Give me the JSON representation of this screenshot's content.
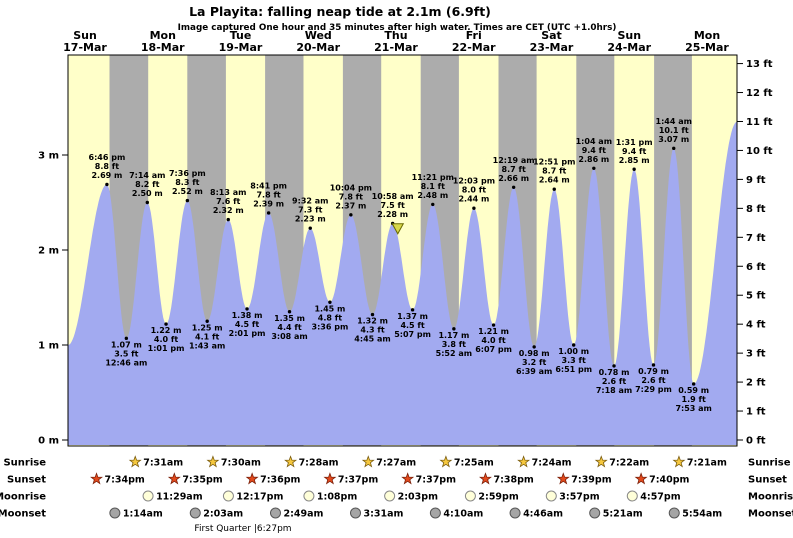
{
  "colors": {
    "day_bg": "#ffffc9",
    "night_bg": "#acacac",
    "tide_fill": "#a2aaf0",
    "day_label": "#e00000",
    "marker_fill": "#d8d84a",
    "marker_stroke": "#6a6a00",
    "sunrise_star": "#f6c83e",
    "sunrise_star_stroke": "#7a5c10",
    "sunset_star": "#e2491c",
    "sunset_star_stroke": "#7a200a",
    "moonrise_fill": "#ffffd9",
    "moonrise_stroke": "#888888",
    "moonset_fill": "#a5a5a5",
    "moonset_stroke": "#555555"
  },
  "chart_data": {
    "type": "area",
    "title": "La Playita: falling  neap tide at 2.1m (6.9ft)",
    "subtitle": "Image captured One hour and 35 minutes after high water. Times are CET (UTC +1.0hrs)",
    "ylim_m": [
      0,
      4.05
    ],
    "ylim_ft": [
      0,
      13.3
    ],
    "y_axis_left": {
      "unit": "m",
      "ticks": [
        "0 m",
        "1 m",
        "2 m",
        "3 m"
      ]
    },
    "y_axis_right": {
      "unit": "ft",
      "ticks": [
        "0 ft",
        "1 ft",
        "2 ft",
        "3 ft",
        "4 ft",
        "5 ft",
        "6 ft",
        "7 ft",
        "8 ft",
        "9 ft",
        "10 ft",
        "11 ft",
        "12 ft",
        "13 ft"
      ]
    },
    "days": [
      {
        "name": "Sun",
        "date": "17-Mar"
      },
      {
        "name": "Mon",
        "date": "18-Mar"
      },
      {
        "name": "Tue",
        "date": "19-Mar"
      },
      {
        "name": "Wed",
        "date": "20-Mar"
      },
      {
        "name": "Thu",
        "date": "21-Mar"
      },
      {
        "name": "Fri",
        "date": "22-Mar"
      },
      {
        "name": "Sat",
        "date": "23-Mar"
      },
      {
        "name": "Sun",
        "date": "24-Mar"
      },
      {
        "name": "Mon",
        "date": "25-Mar"
      }
    ],
    "tide_events": [
      {
        "day": 0,
        "time": "6:46 pm",
        "type": "high",
        "ft": "8.8 ft",
        "m": "2.69 m",
        "height_m": 2.69
      },
      {
        "day": 1,
        "time": "12:46 am",
        "type": "low",
        "ft": "3.5 ft",
        "m": "1.07 m",
        "height_m": 1.07
      },
      {
        "day": 1,
        "time": "7:14 am",
        "type": "high",
        "ft": "8.2 ft",
        "m": "2.50 m",
        "height_m": 2.5
      },
      {
        "day": 1,
        "time": "1:01 pm",
        "type": "low",
        "ft": "4.0 ft",
        "m": "1.22 m",
        "height_m": 1.22
      },
      {
        "day": 1,
        "time": "7:36 pm",
        "type": "high",
        "ft": "8.3 ft",
        "m": "2.52 m",
        "height_m": 2.52
      },
      {
        "day": 2,
        "time": "1:43 am",
        "type": "low",
        "ft": "4.1 ft",
        "m": "1.25 m",
        "height_m": 1.25
      },
      {
        "day": 2,
        "time": "8:13 am",
        "type": "high",
        "ft": "7.6 ft",
        "m": "2.32 m",
        "height_m": 2.32
      },
      {
        "day": 2,
        "time": "2:01 pm",
        "type": "low",
        "ft": "4.5 ft",
        "m": "1.38 m",
        "height_m": 1.38
      },
      {
        "day": 2,
        "time": "8:41 pm",
        "type": "high",
        "ft": "7.8 ft",
        "m": "2.39 m",
        "height_m": 2.39
      },
      {
        "day": 3,
        "time": "3:08 am",
        "type": "low",
        "ft": "4.4 ft",
        "m": "1.35 m",
        "height_m": 1.35
      },
      {
        "day": 3,
        "time": "9:32 am",
        "type": "high",
        "ft": "7.3 ft",
        "m": "2.23 m",
        "height_m": 2.23
      },
      {
        "day": 3,
        "time": "3:36 pm",
        "type": "low",
        "ft": "4.8 ft",
        "m": "1.45 m",
        "height_m": 1.45
      },
      {
        "day": 3,
        "time": "10:04 pm",
        "type": "high",
        "ft": "7.8 ft",
        "m": "2.37 m",
        "height_m": 2.37
      },
      {
        "day": 4,
        "time": "4:45 am",
        "type": "low",
        "ft": "4.3 ft",
        "m": "1.32 m",
        "height_m": 1.32
      },
      {
        "day": 4,
        "time": "10:58 am",
        "type": "high",
        "ft": "7.5 ft",
        "m": "2.28 m",
        "height_m": 2.28
      },
      {
        "day": 4,
        "time": "5:07 pm",
        "type": "low",
        "ft": "4.5 ft",
        "m": "1.37 m",
        "height_m": 1.37
      },
      {
        "day": 4,
        "time": "11:21 pm",
        "type": "high",
        "ft": "8.1 ft",
        "m": "2.48 m",
        "height_m": 2.48
      },
      {
        "day": 5,
        "time": "5:52 am",
        "type": "low",
        "ft": "3.8 ft",
        "m": "1.17 m",
        "height_m": 1.17
      },
      {
        "day": 5,
        "time": "12:03 pm",
        "type": "high",
        "ft": "8.0 ft",
        "m": "2.44 m",
        "height_m": 2.44
      },
      {
        "day": 5,
        "time": "6:07 pm",
        "type": "low",
        "ft": "4.0 ft",
        "m": "1.21 m",
        "height_m": 1.21
      },
      {
        "day": 6,
        "time": "12:19 am",
        "type": "high",
        "ft": "8.7 ft",
        "m": "2.66 m",
        "height_m": 2.66
      },
      {
        "day": 6,
        "time": "6:39 am",
        "type": "low",
        "ft": "3.2 ft",
        "m": "0.98 m",
        "height_m": 0.98
      },
      {
        "day": 6,
        "time": "12:51 pm",
        "type": "high",
        "ft": "8.7 ft",
        "m": "2.64 m",
        "height_m": 2.64
      },
      {
        "day": 6,
        "time": "6:51 pm",
        "type": "low",
        "ft": "3.3 ft",
        "m": "1.00 m",
        "height_m": 1.0
      },
      {
        "day": 7,
        "time": "1:04 am",
        "type": "high",
        "ft": "9.4 ft",
        "m": "2.86 m",
        "height_m": 2.86
      },
      {
        "day": 7,
        "time": "7:18 am",
        "type": "low",
        "ft": "2.6 ft",
        "m": "0.78 m",
        "height_m": 0.78
      },
      {
        "day": 7,
        "time": "1:31 pm",
        "type": "high",
        "ft": "9.4 ft",
        "m": "2.85 m",
        "height_m": 2.85
      },
      {
        "day": 7,
        "time": "7:29 pm",
        "type": "low",
        "ft": "2.6 ft",
        "m": "0.79 m",
        "height_m": 0.79
      },
      {
        "day": 8,
        "time": "1:44 am",
        "type": "high",
        "ft": "10.1 ft",
        "m": "3.07 m",
        "height_m": 3.07
      },
      {
        "day": 8,
        "time": "7:53 am",
        "type": "low",
        "ft": "1.9 ft",
        "m": "0.59 m",
        "height_m": 0.59
      }
    ],
    "current_time_marker": {
      "day": 4,
      "time": "12:33 pm"
    },
    "astro_rows": [
      {
        "id": "sunrise",
        "label": "Sunrise",
        "icon": "sunrise-star-icon",
        "items": [
          {
            "day": 1,
            "time": "7:31am"
          },
          {
            "day": 2,
            "time": "7:30am"
          },
          {
            "day": 3,
            "time": "7:28am"
          },
          {
            "day": 4,
            "time": "7:27am"
          },
          {
            "day": 5,
            "time": "7:25am"
          },
          {
            "day": 6,
            "time": "7:24am"
          },
          {
            "day": 7,
            "time": "7:22am"
          },
          {
            "day": 8,
            "time": "7:21am"
          }
        ]
      },
      {
        "id": "sunset",
        "label": "Sunset",
        "icon": "sunset-star-icon",
        "items": [
          {
            "day": 0,
            "time": "7:34pm"
          },
          {
            "day": 1,
            "time": "7:35pm"
          },
          {
            "day": 2,
            "time": "7:36pm"
          },
          {
            "day": 3,
            "time": "7:37pm"
          },
          {
            "day": 4,
            "time": "7:37pm"
          },
          {
            "day": 5,
            "time": "7:38pm"
          },
          {
            "day": 6,
            "time": "7:39pm"
          },
          {
            "day": 7,
            "time": "7:40pm"
          }
        ]
      },
      {
        "id": "moonrise",
        "label": "Moonrise",
        "icon": "moonrise-circle-icon",
        "items": [
          {
            "day": 1,
            "time": "11:29am"
          },
          {
            "day": 2,
            "time": "12:17pm"
          },
          {
            "day": 3,
            "time": "1:08pm"
          },
          {
            "day": 4,
            "time": "2:03pm"
          },
          {
            "day": 5,
            "time": "2:59pm"
          },
          {
            "day": 6,
            "time": "3:57pm"
          },
          {
            "day": 7,
            "time": "4:57pm"
          }
        ]
      },
      {
        "id": "moonset",
        "label": "Moonset",
        "icon": "moonset-circle-icon",
        "items": [
          {
            "day": 1,
            "time": "1:14am"
          },
          {
            "day": 2,
            "time": "2:03am"
          },
          {
            "day": 3,
            "time": "2:49am"
          },
          {
            "day": 4,
            "time": "3:31am"
          },
          {
            "day": 5,
            "time": "4:10am"
          },
          {
            "day": 6,
            "time": "4:46am"
          },
          {
            "day": 7,
            "time": "5:21am"
          },
          {
            "day": 8,
            "time": "5:54am"
          }
        ]
      }
    ],
    "moon_phase_note": "First Quarter |6:27pm"
  }
}
